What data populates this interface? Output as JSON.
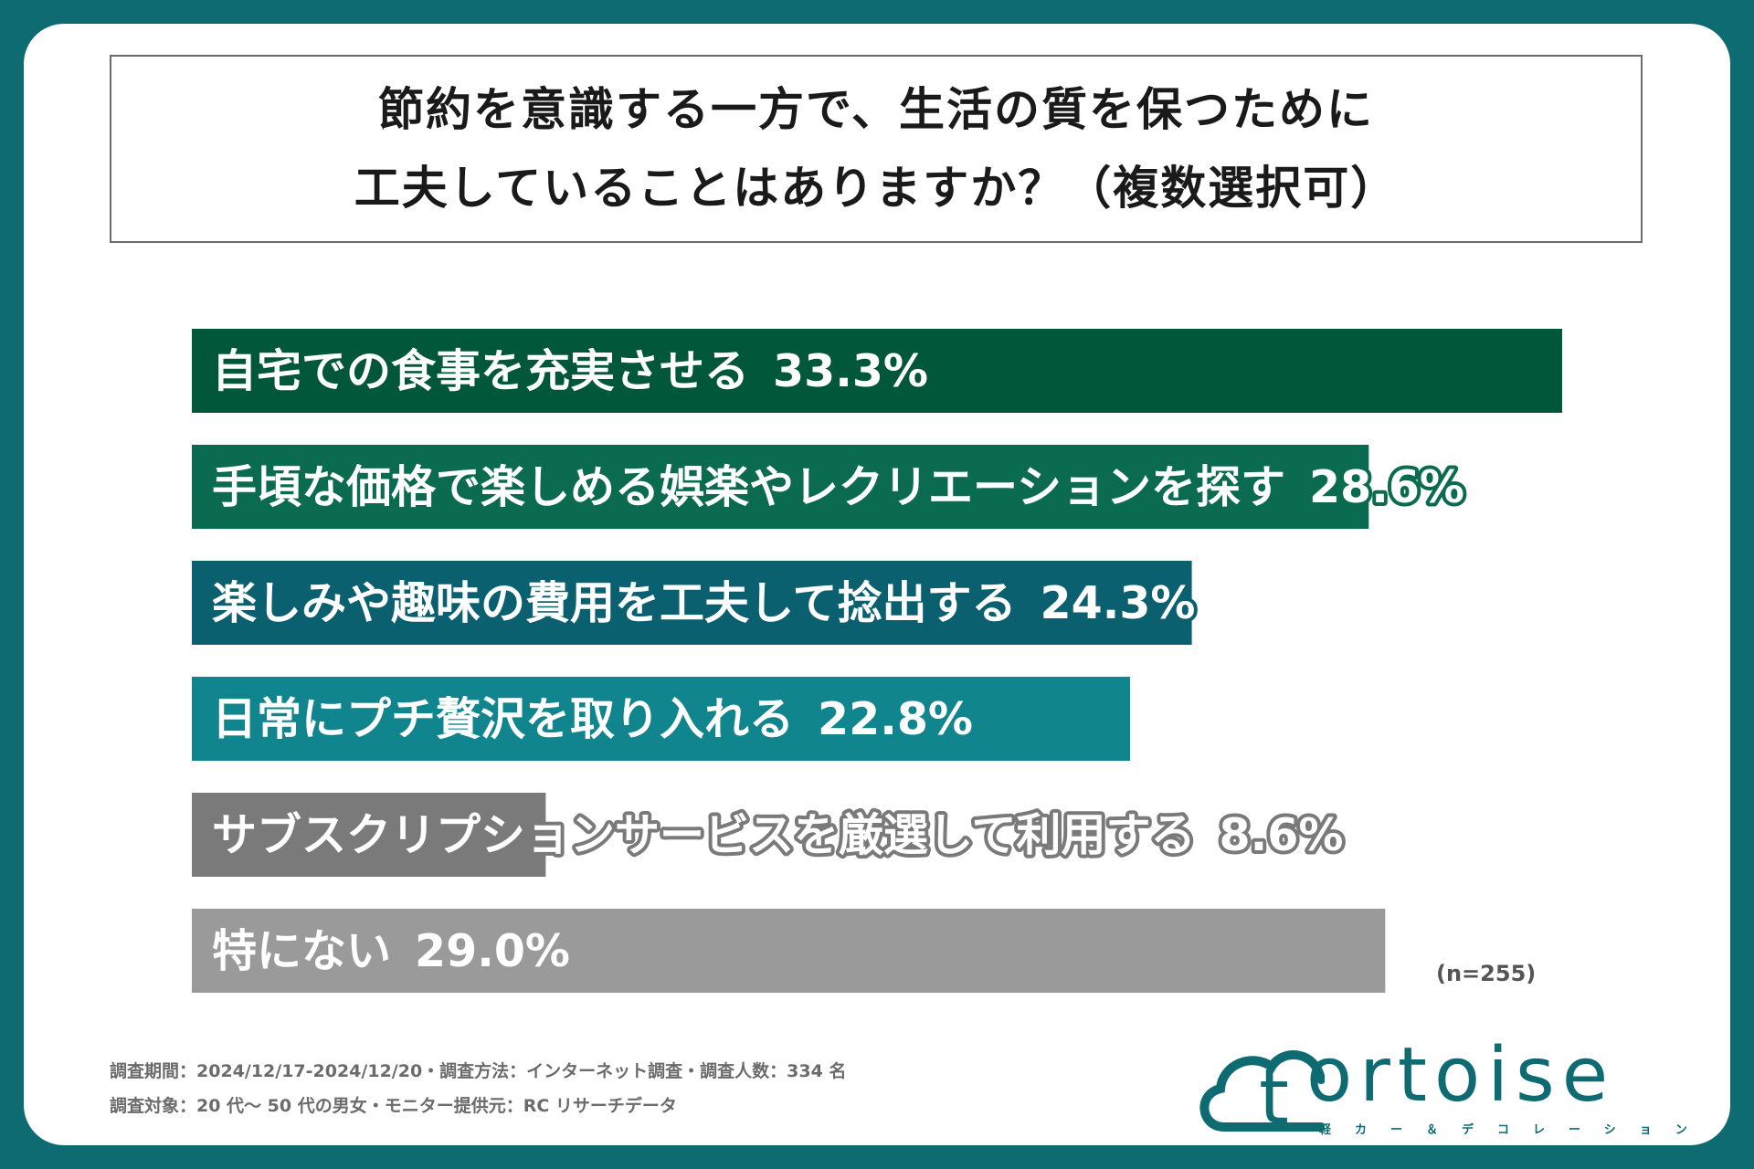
{
  "title": {
    "line1": "節約を意識する一方で、生活の質を保つために",
    "line2": "工夫していることはありますか？（複数選択可）"
  },
  "chart_data": {
    "type": "bar",
    "orientation": "horizontal",
    "categories": [
      "自宅での食事を充実させる",
      "手頃な価格で楽しめる娯楽やレクリエーションを探す",
      "楽しみや趣味の費用を工夫して捻出する",
      "日常にプチ贅沢を取り入れる",
      "サブスクリプションサービスを厳選して利用する",
      "特にない"
    ],
    "values": [
      33.3,
      28.6,
      24.3,
      22.8,
      8.6,
      29.0
    ],
    "value_labels": [
      "33.3%",
      "28.6%",
      "24.3%",
      "22.8%",
      "8.6%",
      "29.0%"
    ],
    "colors": [
      "#00573a",
      "#0b6b50",
      "#0b6070",
      "#11858e",
      "#7a7a7a",
      "#9a9a9a"
    ],
    "xlim": [
      0,
      33.3
    ],
    "sample_size": "(n=255)"
  },
  "footnotes": {
    "line1": "調査期間：2024/12/17-2024/12/20・調査方法：インターネット調査・調査人数：334 名",
    "line2": "調査対象：20 代～ 50 代の男女・モニター提供元：RC リサーチデータ"
  },
  "logo": {
    "word": "ortoise",
    "mark_letter": "t",
    "subtitle": "軽カー＆デコレーション",
    "icon": "cloud-t-logo-icon"
  }
}
